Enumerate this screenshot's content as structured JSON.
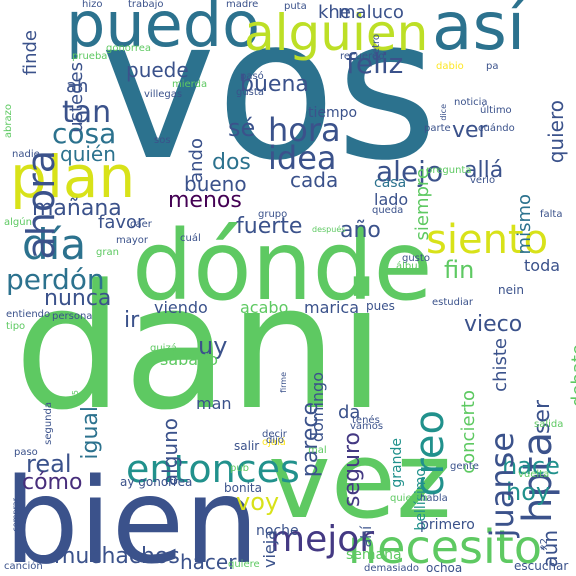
{
  "word_cloud": {
    "background": "#ffffff",
    "palette": [
      "#440154",
      "#3b528b",
      "#21918c",
      "#5ec962",
      "#fde725"
    ],
    "words": [
      {
        "text": "vos",
        "color": "#2c728e"
      },
      {
        "text": "dani",
        "color": "#5ec962"
      },
      {
        "text": "vez",
        "color": "#5ec962"
      },
      {
        "text": "bien",
        "color": "#3b528b"
      },
      {
        "text": "dónde",
        "color": "#5ec962"
      },
      {
        "text": "puedo",
        "color": "#2c728e"
      },
      {
        "text": "así",
        "color": "#2c728e"
      },
      {
        "text": "alguien",
        "color": "#bddf26"
      },
      {
        "text": "plan",
        "color": "#d8e219"
      },
      {
        "text": "día",
        "color": "#2c728e"
      },
      {
        "text": "ahora",
        "color": "#3b528b"
      },
      {
        "text": "necesito",
        "color": "#5ec962"
      },
      {
        "text": "entonces",
        "color": "#21918c"
      },
      {
        "text": "siento",
        "color": "#d8e219"
      },
      {
        "text": "mejor",
        "color": "#443983"
      },
      {
        "text": "hpta",
        "color": "#3b528b"
      },
      {
        "text": "creo",
        "color": "#21918c"
      },
      {
        "text": "hora",
        "color": "#3b528b"
      },
      {
        "text": "idea",
        "color": "#3b528b"
      },
      {
        "text": "alejo",
        "color": "#3b528b"
      },
      {
        "text": "tan",
        "color": "#3b528b"
      },
      {
        "text": "cosa",
        "color": "#2c728e"
      },
      {
        "text": "feliz",
        "color": "#3b528b"
      },
      {
        "text": "perdón",
        "color": "#2c728e"
      },
      {
        "text": "mañana",
        "color": "#3b528b"
      },
      {
        "text": "hace",
        "color": "#21918c"
      },
      {
        "text": "hoy",
        "color": "#21918c"
      },
      {
        "text": "voy",
        "color": "#d8e219"
      },
      {
        "text": "juanse",
        "color": "#3b528b"
      },
      {
        "text": "muchachos",
        "color": "#3b528b"
      },
      {
        "text": "real",
        "color": "#3b528b"
      },
      {
        "text": "cómo",
        "color": "#472d7b"
      },
      {
        "text": "fin",
        "color": "#5ec962"
      },
      {
        "text": "seguro",
        "color": "#443983"
      },
      {
        "text": "puede",
        "color": "#3b528b"
      },
      {
        "text": "buena",
        "color": "#3b528b"
      },
      {
        "text": "sé",
        "color": "#3b528b"
      },
      {
        "text": "dos",
        "color": "#2c728e"
      },
      {
        "text": "menos",
        "color": "#440154"
      },
      {
        "text": "fuerte",
        "color": "#3b528b"
      },
      {
        "text": "bueno",
        "color": "#3b528b"
      },
      {
        "text": "cada",
        "color": "#3b528b"
      },
      {
        "text": "quién",
        "color": "#2c728e"
      },
      {
        "text": "parece",
        "color": "#3b528b"
      },
      {
        "text": "alguno",
        "color": "#3b528b"
      },
      {
        "text": "igual",
        "color": "#2c728e"
      },
      {
        "text": "nunca",
        "color": "#3b528b"
      },
      {
        "text": "hacer",
        "color": "#3b528b"
      },
      {
        "text": "aún",
        "color": "#3b528b"
      },
      {
        "text": "ser",
        "color": "#3b528b"
      },
      {
        "text": "vieco",
        "color": "#3b528b"
      },
      {
        "text": "año",
        "color": "#3b528b"
      },
      {
        "text": "allá",
        "color": "#3b528b"
      },
      {
        "text": "maluco",
        "color": "#3b528b"
      },
      {
        "text": "ver",
        "color": "#3b528b"
      },
      {
        "text": "quiero",
        "color": "#3b528b"
      },
      {
        "text": "khe",
        "color": "#3b528b"
      },
      {
        "text": "mismo",
        "color": "#2c728e"
      },
      {
        "text": "siempre",
        "color": "#5ec962"
      },
      {
        "text": "lado",
        "color": "#3b528b"
      },
      {
        "text": "casa",
        "color": "#2c728e"
      },
      {
        "text": "tiempo",
        "color": "#3b528b"
      },
      {
        "text": "ando",
        "color": "#3b528b"
      },
      {
        "text": "ah",
        "color": "#3b528b"
      },
      {
        "text": "finde",
        "color": "#3b528b"
      },
      {
        "text": "ustedes",
        "color": "#3b528b"
      },
      {
        "text": "favor",
        "color": "#3b528b"
      },
      {
        "text": "debate",
        "color": "#5ec962"
      },
      {
        "text": "toda",
        "color": "#3b528b"
      },
      {
        "text": "concierto",
        "color": "#5ec962"
      },
      {
        "text": "chiste",
        "color": "#3b528b"
      },
      {
        "text": "viendo",
        "color": "#3b528b"
      },
      {
        "text": "acabo",
        "color": "#5ec962"
      },
      {
        "text": "marica",
        "color": "#3b528b"
      },
      {
        "text": "domingo",
        "color": "#3b528b"
      },
      {
        "text": "ir",
        "color": "#3b528b"
      },
      {
        "text": "uy",
        "color": "#3b528b"
      },
      {
        "text": "sábado",
        "color": "#5ec962"
      },
      {
        "text": "man",
        "color": "#3b528b"
      },
      {
        "text": "vieja",
        "color": "#3b528b"
      },
      {
        "text": "da",
        "color": "#3b528b"
      },
      {
        "text": "bellísimo",
        "color": "#21918c"
      },
      {
        "text": "grande",
        "color": "#21918c"
      },
      {
        "text": "semana",
        "color": "#5ec962"
      },
      {
        "text": "noche",
        "color": "#3b528b"
      },
      {
        "text": "ahí",
        "color": "#3b528b"
      },
      {
        "text": "primero",
        "color": "#3b528b"
      },
      {
        "text": "ochoa",
        "color": "#3b528b"
      },
      {
        "text": "escuchar",
        "color": "#3b528b"
      },
      {
        "text": "demasiado",
        "color": "#3b528b"
      },
      {
        "text": "canción",
        "color": "#3b528b"
      },
      {
        "text": "quiere",
        "color": "#5ec962"
      },
      {
        "text": "comprar",
        "color": "#3b528b"
      },
      {
        "text": "ay gonorrea",
        "color": "#3b528b"
      },
      {
        "text": "bonita",
        "color": "#3b528b"
      },
      {
        "text": "quieren",
        "color": "#5ec962"
      },
      {
        "text": "gente",
        "color": "#3b528b"
      },
      {
        "text": "vuelta",
        "color": "#5ec962"
      },
      {
        "text": "x2",
        "color": "#3b528b"
      },
      {
        "text": "habla",
        "color": "#3b528b"
      },
      {
        "text": "salida",
        "color": "#5ec962"
      },
      {
        "text": "salir",
        "color": "#3b528b"
      },
      {
        "text": "decir",
        "color": "#3b528b"
      },
      {
        "text": "ojalá",
        "color": "#fde725"
      },
      {
        "text": "mal",
        "color": "#5ec962"
      },
      {
        "text": "vamos",
        "color": "#3b528b"
      },
      {
        "text": "tenés",
        "color": "#3b528b"
      },
      {
        "text": "dijo",
        "color": "#3b528b"
      },
      {
        "text": "pub",
        "color": "#5ec962"
      },
      {
        "text": "trilo",
        "color": "#3b528b"
      },
      {
        "text": "firme",
        "color": "#3b528b"
      },
      {
        "text": "paso",
        "color": "#3b528b"
      },
      {
        "text": "segunda",
        "color": "#3b528b"
      },
      {
        "text": "x5",
        "color": "#5ec962"
      },
      {
        "text": "entiendo",
        "color": "#3b528b"
      },
      {
        "text": "tipo",
        "color": "#5ec962"
      },
      {
        "text": "persona",
        "color": "#3b528b"
      },
      {
        "text": "quizá",
        "color": "#5ec962"
      },
      {
        "text": "pues",
        "color": "#3b528b"
      },
      {
        "text": "estudiar",
        "color": "#3b528b"
      },
      {
        "text": "gusto",
        "color": "#3b528b"
      },
      {
        "text": "álbum",
        "color": "#5ec962"
      },
      {
        "text": "nein",
        "color": "#3b528b"
      },
      {
        "text": "después",
        "color": "#5ec962"
      },
      {
        "text": "cuál",
        "color": "#3b528b"
      },
      {
        "text": "gran",
        "color": "#5ec962"
      },
      {
        "text": "mayor",
        "color": "#3b528b"
      },
      {
        "text": "caer",
        "color": "#3b528b"
      },
      {
        "text": "algún",
        "color": "#5ec962"
      },
      {
        "text": "grupo",
        "color": "#3b528b"
      },
      {
        "text": "queda",
        "color": "#3b528b"
      },
      {
        "text": "falta",
        "color": "#3b528b"
      },
      {
        "text": "verlo",
        "color": "#3b528b"
      },
      {
        "text": "nadie",
        "color": "#3b528b"
      },
      {
        "text": "sos",
        "color": "#3b528b"
      },
      {
        "text": "pregunta",
        "color": "#5ec962"
      },
      {
        "text": "parte",
        "color": "#3b528b"
      },
      {
        "text": "cuándo",
        "color": "#3b528b"
      },
      {
        "text": "noticia",
        "color": "#3b528b"
      },
      {
        "text": "último",
        "color": "#3b528b"
      },
      {
        "text": "dice",
        "color": "#3b528b"
      },
      {
        "text": "gusta",
        "color": "#3b528b"
      },
      {
        "text": "pasó",
        "color": "#3b528b"
      },
      {
        "text": "villegas",
        "color": "#3b528b"
      },
      {
        "text": "mierda",
        "color": "#5ec962"
      },
      {
        "text": "gonorrea",
        "color": "#5ec962"
      },
      {
        "text": "prueba",
        "color": "#5ec962"
      },
      {
        "text": "abrazo",
        "color": "#5ec962"
      },
      {
        "text": "trabajo",
        "color": "#3b528b"
      },
      {
        "text": "hizo",
        "color": "#3b528b"
      },
      {
        "text": "madre",
        "color": "#3b528b"
      },
      {
        "text": "puta",
        "color": "#3b528b"
      },
      {
        "text": "petro",
        "color": "#3b528b"
      },
      {
        "text": "recuerdo",
        "color": "#3b528b"
      },
      {
        "text": "dabio",
        "color": "#fde725"
      },
      {
        "text": "pa",
        "color": "#3b528b"
      }
    ]
  }
}
